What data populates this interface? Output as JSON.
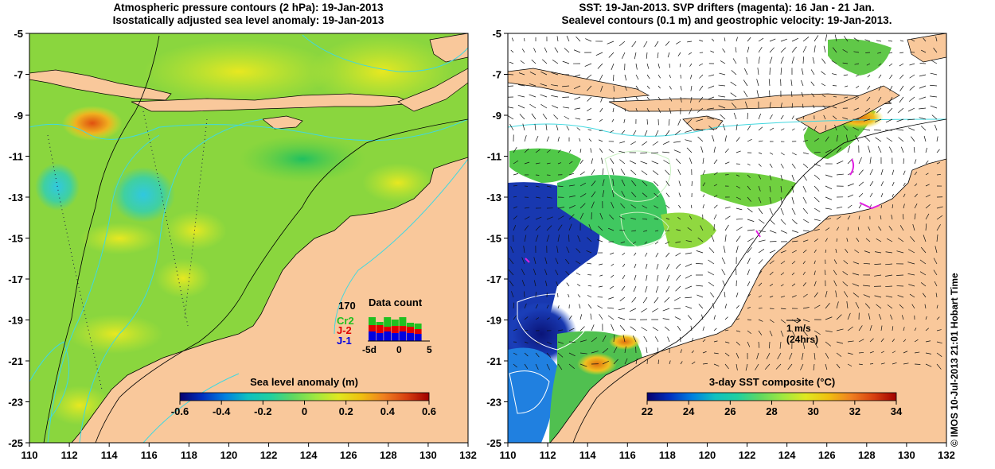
{
  "left_map": {
    "title_line1": "Atmospheric pressure contours (2 hPa): 19-Jan-2013",
    "title_line2": "Isostatically adjusted sea level anomaly: 19-Jan-2013",
    "x_ticks": [
      "110",
      "112",
      "114",
      "116",
      "118",
      "120",
      "122",
      "124",
      "126",
      "128",
      "130",
      "132"
    ],
    "y_ticks": [
      "-5",
      "-7",
      "-9",
      "-11",
      "-13",
      "-15",
      "-17",
      "-19",
      "-21",
      "-23",
      "-25"
    ],
    "colorbar": {
      "title": "Sea level anomaly (m)",
      "ticks": [
        "-0.6",
        "-0.4",
        "-0.2",
        "0",
        "0.2",
        "0.4",
        "0.6"
      ],
      "colors": [
        "#08006e",
        "#0030c0",
        "#0080e0",
        "#10c0c0",
        "#20d0a0",
        "#60d860",
        "#a0e840",
        "#e0e820",
        "#f0c010",
        "#f08020",
        "#d84010",
        "#a00000"
      ]
    },
    "data_count": {
      "title": "Data count",
      "max_label": "170",
      "missions": [
        {
          "label": "Cr2",
          "color": "#20c020"
        },
        {
          "label": "J-2",
          "color": "#e00000"
        },
        {
          "label": "J-1",
          "color": "#0000e0"
        }
      ],
      "axis_labels": [
        "-5d",
        "0",
        "5"
      ]
    }
  },
  "right_map": {
    "title_line1": "SST: 19-Jan-2013. SVP drifters (magenta): 16 Jan - 21 Jan.",
    "title_line2": "Sealevel contours (0.1 m) and geostrophic velocity: 19-Jan-2013.",
    "x_ticks": [
      "110",
      "112",
      "114",
      "116",
      "118",
      "120",
      "122",
      "124",
      "126",
      "128",
      "130",
      "132"
    ],
    "y_ticks": [
      "-5",
      "-7",
      "-9",
      "-11",
      "-13",
      "-15",
      "-17",
      "-19",
      "-21",
      "-23",
      "-25"
    ],
    "colorbar": {
      "title": "3-day SST composite (°C)",
      "ticks": [
        "22",
        "24",
        "26",
        "28",
        "30",
        "32",
        "34"
      ],
      "colors": [
        "#08006e",
        "#0030c0",
        "#0080e0",
        "#10c0c0",
        "#20d0a0",
        "#60d860",
        "#a0e840",
        "#e0e820",
        "#f0c010",
        "#f08020",
        "#d84010",
        "#a00000"
      ]
    },
    "velocity_scale": {
      "line1": "1 m/s",
      "line2": "(24hrs)"
    }
  },
  "credit": "© IMOS 10-Jul-2013 21:01 Hobart Time",
  "colors": {
    "land": "#f9c89b",
    "sea_left": "#8ad63e",
    "contour": "#40d8e0"
  }
}
